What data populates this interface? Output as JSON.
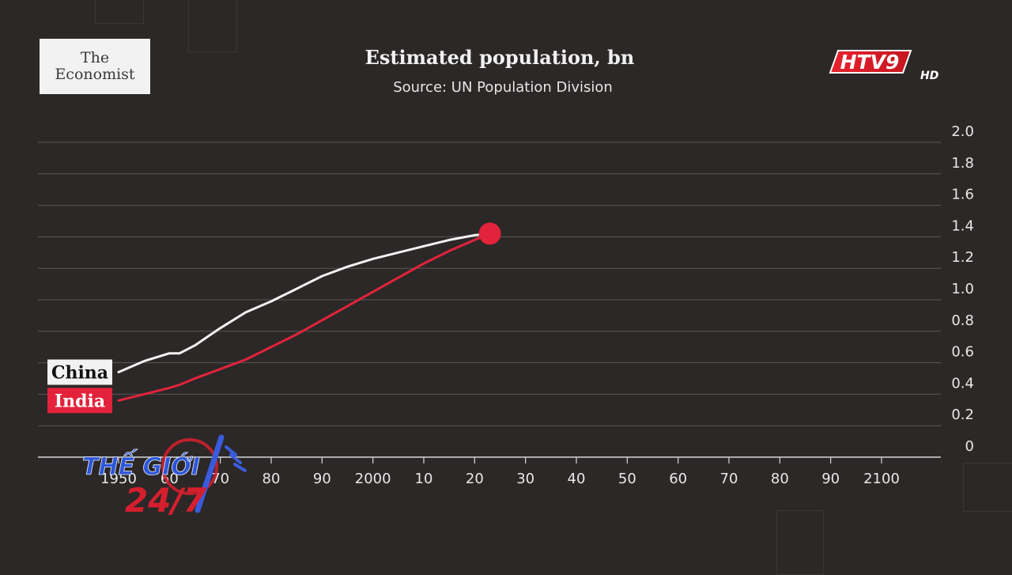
{
  "brand": {
    "line1": "The",
    "line2": "Economist"
  },
  "broadcaster": {
    "logo_text": "HTV9",
    "hd_text": "HD"
  },
  "show": {
    "line1": "THẾ GIỚI",
    "line2": "24/7"
  },
  "chart_data": {
    "type": "line",
    "title": "Estimated population, bn",
    "subtitle": "Source: UN Population Division",
    "xlim": [
      1950,
      2100
    ],
    "ylim": [
      0,
      2.0
    ],
    "x_ticks": [
      1950,
      1960,
      1970,
      1980,
      1990,
      2000,
      2010,
      2020,
      2030,
      2040,
      2050,
      2060,
      2070,
      2080,
      2090,
      2100
    ],
    "x_tick_labels": [
      "1950",
      "60",
      "70",
      "80",
      "90",
      "2000",
      "10",
      "20",
      "30",
      "40",
      "50",
      "60",
      "70",
      "80",
      "90",
      "2100"
    ],
    "y_ticks": [
      0,
      0.2,
      0.4,
      0.6,
      0.8,
      1.0,
      1.2,
      1.4,
      1.6,
      1.8,
      2.0
    ],
    "y_tick_labels": [
      "0",
      "0.2",
      "0.4",
      "0.6",
      "0.8",
      "1.0",
      "1.2",
      "1.4",
      "1.6",
      "1.8",
      "2.0"
    ],
    "grid": true,
    "x": [
      1950,
      1955,
      1960,
      1962,
      1965,
      1970,
      1975,
      1980,
      1985,
      1990,
      1995,
      2000,
      2005,
      2010,
      2015,
      2020,
      2023
    ],
    "series": [
      {
        "name": "China",
        "color": "#f2f2f2",
        "values": [
          0.54,
          0.61,
          0.66,
          0.66,
          0.71,
          0.82,
          0.92,
          0.99,
          1.07,
          1.15,
          1.21,
          1.26,
          1.3,
          1.34,
          1.38,
          1.41,
          1.42
        ]
      },
      {
        "name": "India",
        "color": "#e3233b",
        "values": [
          0.36,
          0.4,
          0.44,
          0.46,
          0.5,
          0.56,
          0.62,
          0.7,
          0.78,
          0.87,
          0.96,
          1.05,
          1.14,
          1.23,
          1.31,
          1.38,
          1.42
        ]
      }
    ],
    "highlight_point": {
      "x": 2023,
      "y": 1.42,
      "color": "#e3233b"
    }
  }
}
